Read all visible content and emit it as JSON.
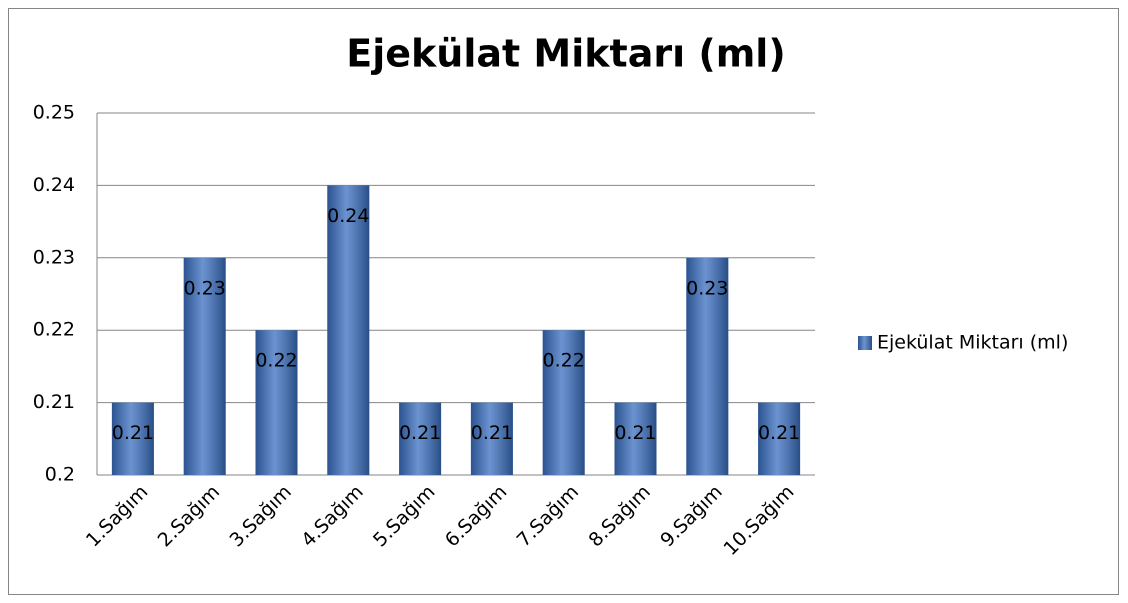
{
  "chart_data": {
    "type": "bar",
    "title": "Ejekülat Miktarı (ml)",
    "categories": [
      "1.Sağım",
      "2.Sağım",
      "3.Sağım",
      "4.Sağım",
      "5.Sağım",
      "6.Sağım",
      "7.Sağım",
      "8.Sağım",
      "9.Sağım",
      "10.Sağım"
    ],
    "series": [
      {
        "name": "Ejekülat Miktarı (ml)",
        "color": "#3a6fc0",
        "values": [
          0.21,
          0.23,
          0.22,
          0.24,
          0.21,
          0.21,
          0.22,
          0.21,
          0.23,
          0.21
        ]
      }
    ],
    "ylim": [
      0.2,
      0.25
    ],
    "yticks": [
      0.2,
      0.21,
      0.22,
      0.23,
      0.24,
      0.25
    ],
    "grid": true,
    "legend": "right"
  }
}
